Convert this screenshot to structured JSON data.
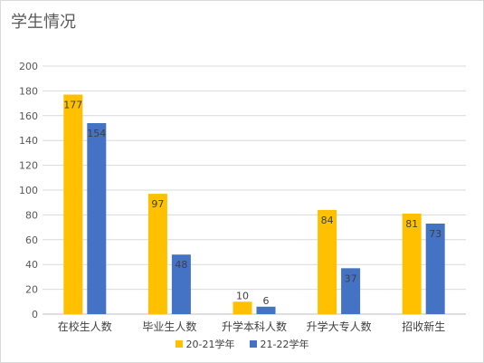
{
  "chart_data": {
    "type": "bar",
    "title": "学生情况",
    "categories": [
      "在校生人数",
      "毕业生人数",
      "升学本科人数",
      "升学大专人数",
      "招收新生"
    ],
    "series": [
      {
        "name": "20-21学年",
        "values": [
          177,
          97,
          10,
          84,
          81
        ],
        "color": "#FFC000"
      },
      {
        "name": "21-22学年",
        "values": [
          154,
          48,
          6,
          37,
          73
        ],
        "color": "#4472C4"
      }
    ],
    "ylim": [
      0,
      200
    ],
    "yticks": [
      "0",
      "20",
      "40",
      "60",
      "80",
      "100",
      "120",
      "140",
      "160",
      "180",
      "200"
    ],
    "grid": true,
    "legend_position": "bottom"
  }
}
